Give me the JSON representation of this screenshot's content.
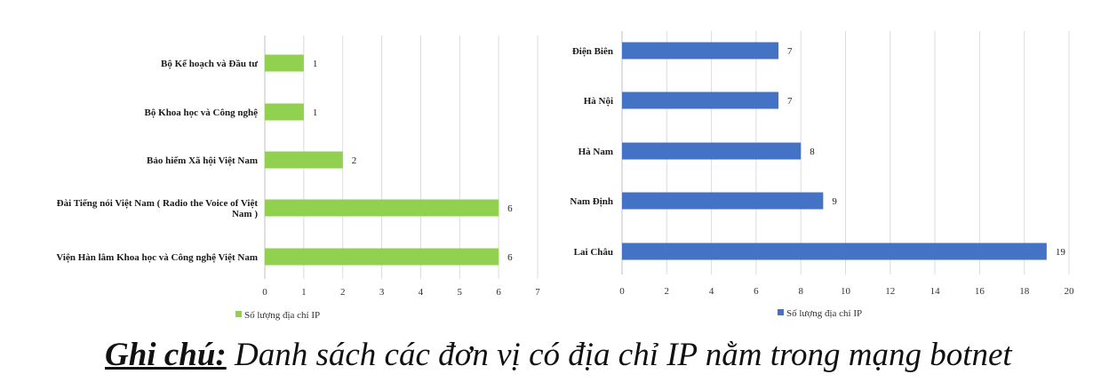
{
  "chart_data": [
    {
      "type": "bar",
      "orientation": "horizontal",
      "categories": [
        "Bộ Kế hoạch và Đầu tư",
        "Bộ Khoa học và Công nghệ",
        "Bảo hiểm Xã hội Việt Nam",
        "Đài Tiếng nói Việt Nam ( Radio the Voice of Việt Nam )",
        "Viện Hàn lâm Khoa học và Công nghệ Việt Nam"
      ],
      "category_lines": [
        [
          "Bộ Kế hoạch và Đầu tư"
        ],
        [
          "Bộ Khoa học và Công nghệ"
        ],
        [
          "Bảo hiểm Xã hội Việt Nam"
        ],
        [
          "Đài Tiếng nói Việt Nam ( Radio the Voice of Việt",
          "Nam )"
        ],
        [
          "Viện Hàn lâm Khoa học và Công nghệ Việt Nam"
        ]
      ],
      "series": [
        {
          "name": "Số lượng địa chỉ IP",
          "values": [
            1,
            1,
            2,
            6,
            6
          ],
          "color": "#92d050"
        }
      ],
      "xlim": [
        0,
        7
      ],
      "ticks": [
        0,
        1,
        2,
        3,
        4,
        5,
        6,
        7
      ],
      "grid": true,
      "data_labels": true,
      "legend": "bottom-left"
    },
    {
      "type": "bar",
      "orientation": "horizontal",
      "categories": [
        "Điện Biên",
        "Hà Nội",
        "Hà Nam",
        "Nam Định",
        "Lai Châu"
      ],
      "category_lines": [
        [
          "Điện Biên"
        ],
        [
          "Hà Nội"
        ],
        [
          "Hà Nam"
        ],
        [
          "Nam Định"
        ],
        [
          "Lai Châu"
        ]
      ],
      "series": [
        {
          "name": "Số lượng địa chỉ IP",
          "values": [
            7,
            7,
            8,
            9,
            19
          ],
          "color": "#4472c4"
        }
      ],
      "xlim": [
        0,
        20
      ],
      "ticks": [
        0,
        2,
        4,
        6,
        8,
        10,
        12,
        14,
        16,
        18,
        20
      ],
      "grid": true,
      "data_labels": true,
      "legend": "bottom-left"
    }
  ],
  "caption": {
    "lead": "Ghi chú:",
    "text": " Danh sách các đơn vị có địa chỉ IP nằm trong mạng botnet"
  }
}
